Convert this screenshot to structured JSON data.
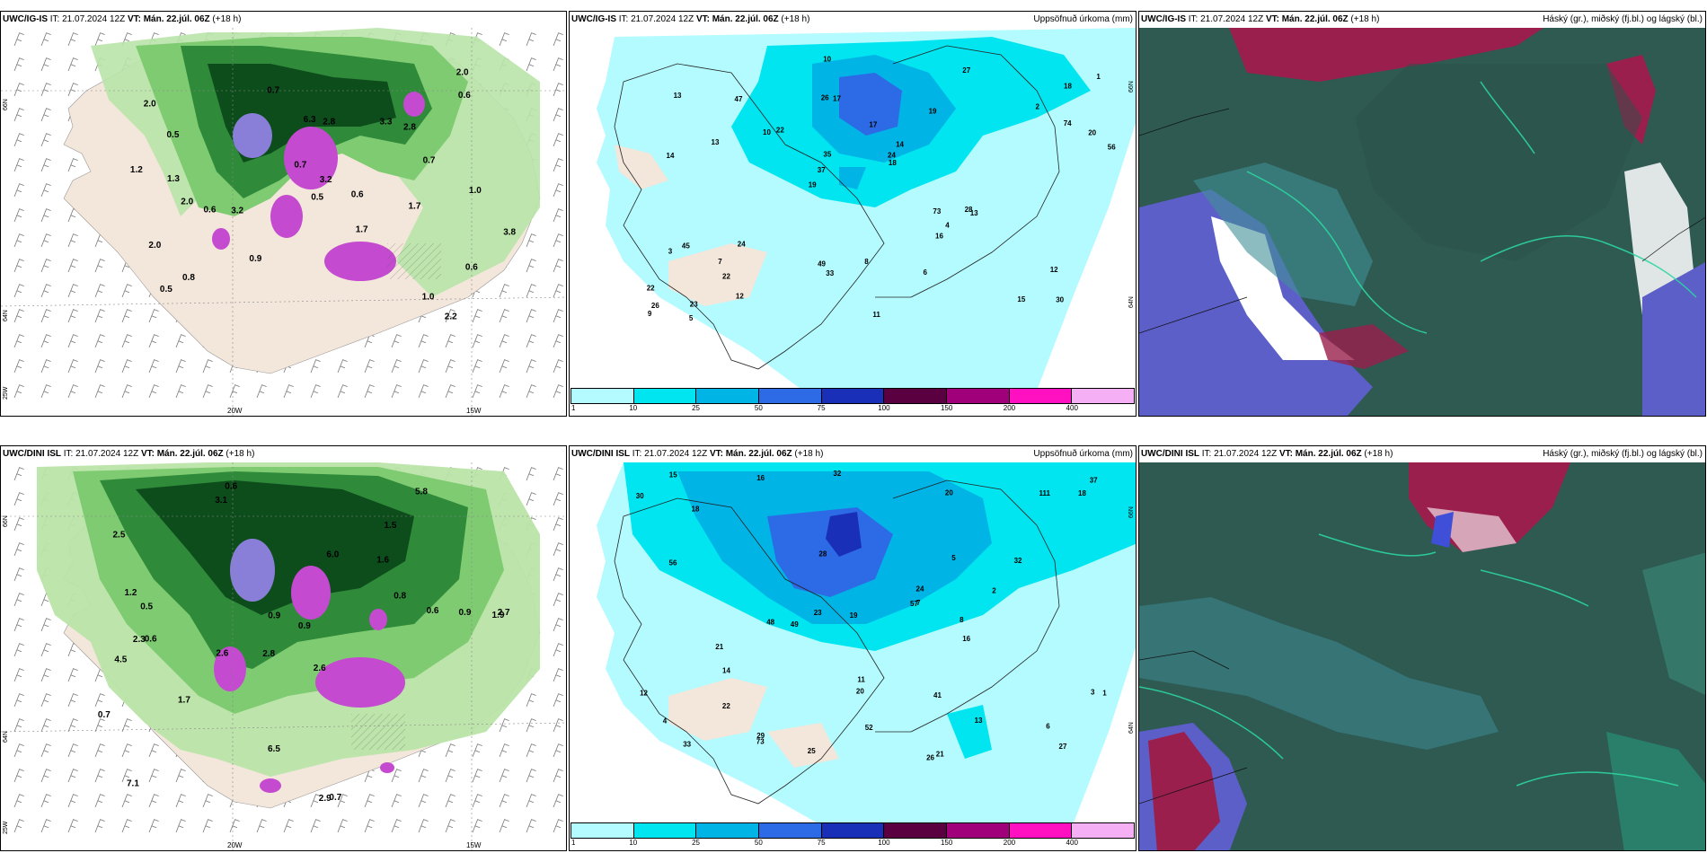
{
  "panels": {
    "top_left": {
      "model": "UWC/IG-IS",
      "it_text": " IT: 21.07.2024 12Z ",
      "vt_label": "VT:",
      "vt_value": " Mán. 22.júl. 06Z",
      "lead": " (+18 h)",
      "right": ""
    },
    "top_mid": {
      "model": "UWC/IG-IS",
      "it_text": " IT: 21.07.2024 12Z ",
      "vt_label": "VT:",
      "vt_value": " Mán. 22.júl. 06Z",
      "lead": " (+18 h)",
      "right": "Uppsöfnuð úrkoma (mm)"
    },
    "top_right": {
      "model": "UWC/IG-IS",
      "it_text": " IT: 21.07.2024 12Z ",
      "vt_label": "VT:",
      "vt_value": " Mán. 22.júl. 06Z",
      "lead": " (+18 h)",
      "right": "Háský (gr.), miðský (fj.bl.) og lágský (bl.)"
    },
    "bot_left": {
      "model": "UWC/DINI ISL",
      "it_text": " IT: 21.07.2024 12Z ",
      "vt_label": "VT:",
      "vt_value": " Mán. 22.júl. 06Z",
      "lead": " (+18 h)",
      "right": ""
    },
    "bot_mid": {
      "model": "UWC/DINI ISL",
      "it_text": " IT: 21.07.2024 12Z ",
      "vt_label": "VT:",
      "vt_value": " Mán. 22.júl. 06Z",
      "lead": " (+18 h)",
      "right": "Uppsöfnuð úrkoma (mm)"
    },
    "bot_right": {
      "model": "UWC/DINI ISL",
      "it_text": " IT: 21.07.2024 12Z ",
      "vt_label": "VT:",
      "vt_value": " Mán. 22.júl. 06Z",
      "lead": " (+18 h)",
      "right": "Háský (gr.), miðský (fj.bl.) og lágský (bl.)"
    }
  },
  "axes": {
    "lon_20w": "20W",
    "lon_15w": "15W",
    "lat_66n": "66N",
    "lat_64n": "64N",
    "lat_25w": "25W"
  },
  "colorbar": {
    "labels": [
      "1",
      "10",
      "25",
      "50",
      "75",
      "100",
      "150",
      "200",
      "400"
    ],
    "colors": [
      "#b3fbff",
      "#00e5f0",
      "#00b4e6",
      "#2d6be6",
      "#1a2fb8",
      "#5a0040",
      "#a0007a",
      "#ff10c0",
      "#f5b0f5"
    ]
  },
  "precip_top_values": [
    "30",
    "14",
    "18",
    "19",
    "19",
    "23",
    "26",
    "17",
    "45",
    "22",
    "22",
    "22",
    "17",
    "14",
    "13",
    "13",
    "10",
    "56",
    "73",
    "74",
    "37",
    "49",
    "35",
    "47",
    "27",
    "24",
    "15",
    "12",
    "28",
    "11",
    "10",
    "13",
    "16",
    "12",
    "20",
    "24",
    "26",
    "33",
    "18",
    "3",
    "2",
    "1",
    "4",
    "6",
    "7",
    "5",
    "9",
    "8"
  ],
  "precip_bot_values": [
    "25",
    "26",
    "29",
    "13",
    "16",
    "18",
    "48",
    "27",
    "32",
    "28",
    "111",
    "52",
    "23",
    "20",
    "20",
    "57",
    "56",
    "73",
    "49",
    "30",
    "41",
    "37",
    "24",
    "33",
    "32",
    "21",
    "12",
    "14",
    "15",
    "16",
    "19",
    "21",
    "11",
    "18",
    "22",
    "8",
    "3",
    "4",
    "5",
    "6",
    "7",
    "2",
    "1"
  ],
  "wind_top_values": [
    "2.2",
    "2.0",
    "1.7",
    "2.0",
    "0.6",
    "0.5",
    "0.8",
    "3.2",
    "2.8",
    "6.3",
    "3.3",
    "1.0",
    "0.9",
    "0.7",
    "0.6",
    "2.0",
    "1.7",
    "3.2",
    "1.2",
    "0.5",
    "2.0",
    "2.8",
    "0.7",
    "3.8",
    "1.0",
    "1.3",
    "0.6",
    "0.5",
    "0.7",
    "0.6"
  ],
  "wind_bot_values": [
    "0.6",
    "1.5",
    "1.9",
    "2.8",
    "2.6",
    "0.6",
    "2.5",
    "1.6",
    "4.5",
    "6.0",
    "0.9",
    "7.1",
    "3.1",
    "2.6",
    "2.9",
    "0.7",
    "6.5",
    "5.8",
    "0.8",
    "1.7",
    "0.5",
    "2.3",
    "2.7",
    "0.9",
    "0.7",
    "1.2",
    "0.9",
    "0.6"
  ]
}
